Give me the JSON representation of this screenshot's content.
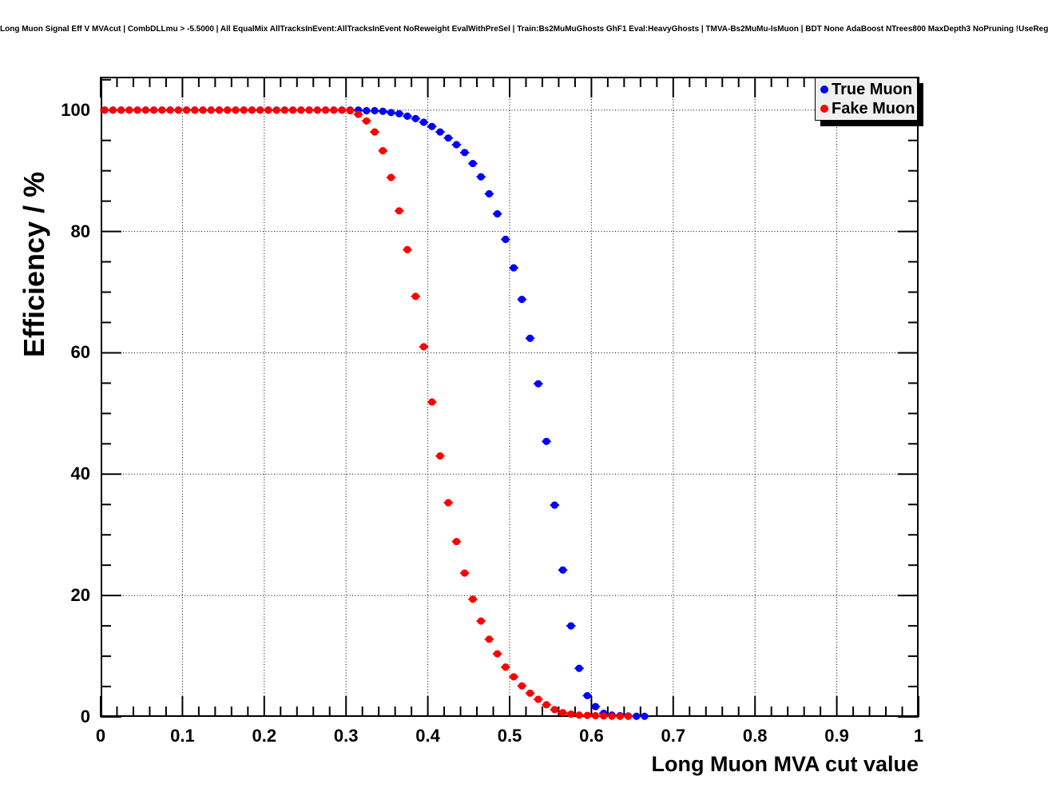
{
  "title": "Long Muon Signal Eff V MVAcut | CombDLLmu > -5.5000 | All EqualMix AllTracksInEvent:AllTracksInEvent NoReweight EvalWithPreSel | Train:Bs2MuMuGhosts GhF1 Eval:HeavyGhosts | TMVA-Bs2MuMu-IsMuon | BDT None AdaBoost NTrees800 MaxDepth3 NoPruning !UseReg",
  "chart_data": {
    "type": "scatter",
    "title": "Long Muon Signal Eff V MVAcut | CombDLLmu > -5.5000 | All EqualMix AllTracksInEvent:AllTracksInEvent NoReweight EvalWithPreSel | Train:Bs2MuMuGhosts GhF1 Eval:HeavyGhosts | TMVA-Bs2MuMu-IsMuon | BDT None AdaBoost NTrees800 MaxDepth3 NoPruning !UseReg",
    "xlabel": "Long Muon MVA cut value",
    "ylabel": "Efficiency / %",
    "xlim": [
      0,
      1
    ],
    "ylim": [
      0,
      105.5
    ],
    "grid": true,
    "grid_style": "dotted",
    "x_tick_values": [
      0,
      0.1,
      0.2,
      0.3,
      0.4,
      0.5,
      0.6,
      0.7,
      0.8,
      0.9,
      1
    ],
    "x_tick_labels": [
      "0",
      "0.1",
      "0.2",
      "0.3",
      "0.4",
      "0.5",
      "0.6",
      "0.7",
      "0.8",
      "0.9",
      "1"
    ],
    "y_tick_values": [
      0,
      20,
      40,
      60,
      80,
      100
    ],
    "y_tick_labels": [
      "0",
      "20",
      "40",
      "60",
      "80",
      "100"
    ],
    "x_minor_step": 0.02,
    "y_minor_step": 5,
    "x_gridlines": [
      0.1,
      0.2,
      0.3,
      0.4,
      0.5,
      0.6,
      0.7,
      0.8,
      0.9
    ],
    "y_gridlines": [
      20,
      40,
      60,
      80,
      100
    ],
    "marker_style": "filled-circle",
    "x_bin_half_width": 0.005,
    "legend": {
      "position": "top-right",
      "entries": [
        {
          "label": "True Muon",
          "color": "#0000ff"
        },
        {
          "label": "Fake Muon",
          "color": "#ff0000"
        }
      ]
    },
    "series": [
      {
        "name": "True Muon",
        "color": "#0000ff",
        "x": [
          0.005,
          0.015,
          0.025,
          0.035,
          0.045,
          0.055,
          0.065,
          0.075,
          0.085,
          0.095,
          0.105,
          0.115,
          0.125,
          0.135,
          0.145,
          0.155,
          0.165,
          0.175,
          0.185,
          0.195,
          0.205,
          0.215,
          0.225,
          0.235,
          0.245,
          0.255,
          0.265,
          0.275,
          0.285,
          0.295,
          0.305,
          0.315,
          0.325,
          0.335,
          0.345,
          0.355,
          0.365,
          0.375,
          0.385,
          0.395,
          0.405,
          0.415,
          0.425,
          0.435,
          0.445,
          0.455,
          0.465,
          0.475,
          0.485,
          0.495,
          0.505,
          0.515,
          0.525,
          0.535,
          0.545,
          0.555,
          0.565,
          0.575,
          0.585,
          0.595,
          0.605,
          0.615,
          0.625,
          0.635,
          0.645,
          0.655,
          0.665
        ],
        "y": [
          100,
          100,
          100,
          100,
          100,
          100,
          100,
          100,
          100,
          100,
          100,
          100,
          100,
          100,
          100,
          100,
          100,
          100,
          100,
          100,
          100,
          100,
          100,
          100,
          100,
          100,
          100,
          100,
          100,
          100,
          100,
          100,
          99.9,
          99.9,
          99.8,
          99.6,
          99.4,
          99.0,
          98.6,
          98.0,
          97.3,
          96.4,
          95.4,
          94.3,
          93.0,
          91.2,
          89.0,
          86.2,
          82.9,
          78.7,
          74.0,
          68.8,
          62.4,
          54.9,
          45.4,
          34.9,
          24.2,
          15.0,
          8.0,
          3.5,
          1.7,
          0.6,
          0.3,
          0.2,
          0.15,
          0.1,
          0.1
        ]
      },
      {
        "name": "Fake Muon",
        "color": "#ff0000",
        "x": [
          0.005,
          0.015,
          0.025,
          0.035,
          0.045,
          0.055,
          0.065,
          0.075,
          0.085,
          0.095,
          0.105,
          0.115,
          0.125,
          0.135,
          0.145,
          0.155,
          0.165,
          0.175,
          0.185,
          0.195,
          0.205,
          0.215,
          0.225,
          0.235,
          0.245,
          0.255,
          0.265,
          0.275,
          0.285,
          0.295,
          0.305,
          0.315,
          0.325,
          0.335,
          0.345,
          0.355,
          0.365,
          0.375,
          0.385,
          0.395,
          0.405,
          0.415,
          0.425,
          0.435,
          0.445,
          0.455,
          0.465,
          0.475,
          0.485,
          0.495,
          0.505,
          0.515,
          0.525,
          0.535,
          0.545,
          0.555,
          0.565,
          0.575,
          0.585,
          0.595,
          0.605,
          0.615,
          0.625,
          0.635,
          0.645
        ],
        "y": [
          100,
          100,
          100,
          100,
          100,
          100,
          100,
          100,
          100,
          100,
          100,
          100,
          100,
          100,
          100,
          100,
          100,
          100,
          100,
          100,
          100,
          100,
          100,
          100,
          100,
          100,
          100,
          100,
          100,
          100,
          99.9,
          99.3,
          98.2,
          96.4,
          93.3,
          88.9,
          83.4,
          77.0,
          69.3,
          61.0,
          51.9,
          43.0,
          35.3,
          28.9,
          23.7,
          19.4,
          15.8,
          12.8,
          10.4,
          8.2,
          6.6,
          5.1,
          3.9,
          2.9,
          2.0,
          1.2,
          0.7,
          0.45,
          0.3,
          0.25,
          0.2,
          0.15,
          0.12,
          0.1,
          0.1
        ]
      }
    ]
  }
}
